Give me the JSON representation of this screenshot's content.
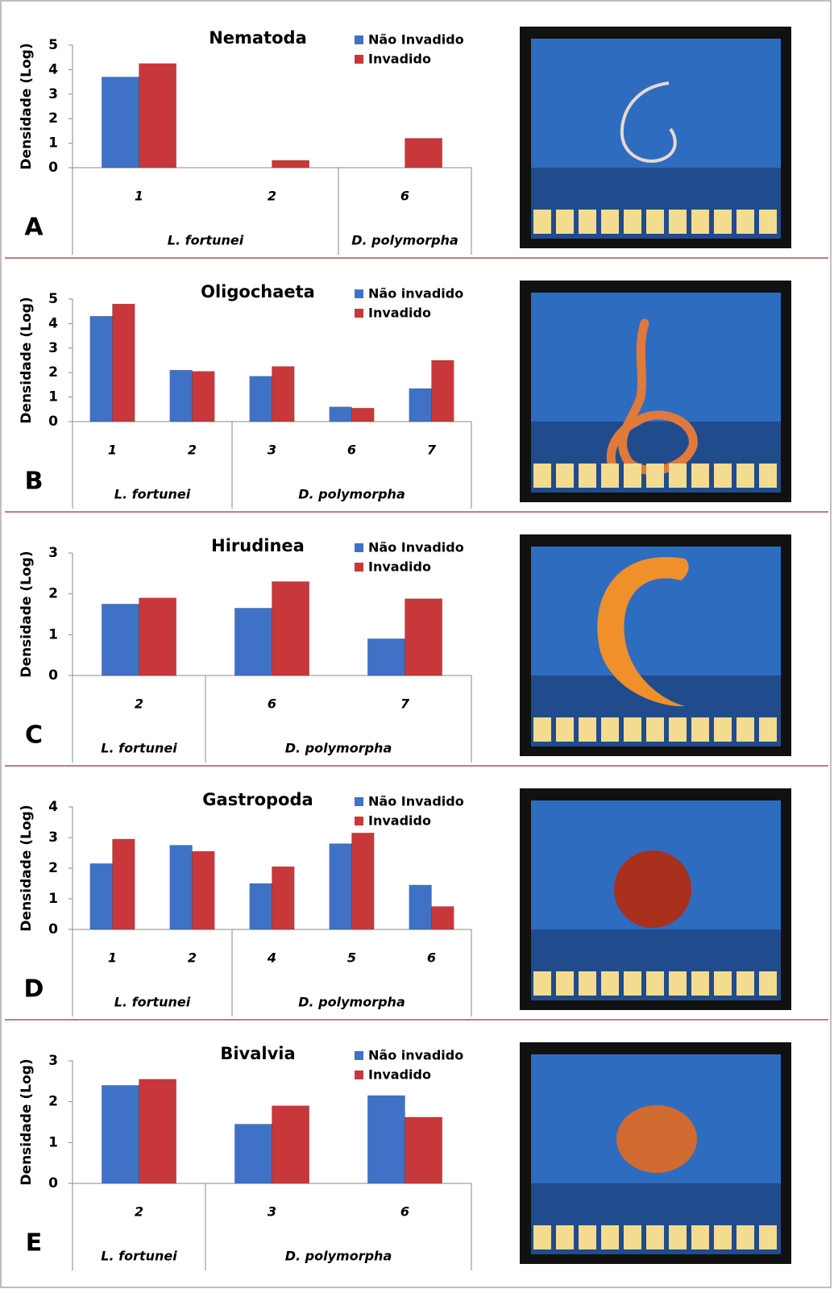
{
  "chart_data": [
    {
      "type": "bar",
      "panel": "A",
      "title": "Nematoda",
      "y_label": "Densidade (Log)",
      "categories": [
        "1",
        "2",
        "6"
      ],
      "category_groups": [
        "L. fortunei",
        "L. fortunei",
        "D. polymorpha"
      ],
      "series": [
        {
          "name": "Não Invadido",
          "color": "#3f72c6",
          "values": [
            3.7,
            0,
            0
          ]
        },
        {
          "name": "Invadido",
          "color": "#c8383a",
          "values": [
            4.25,
            0.3,
            1.2
          ]
        }
      ],
      "ylim": [
        0,
        5
      ],
      "yticks": [
        0,
        1,
        2,
        3,
        4,
        5
      ]
    },
    {
      "type": "bar",
      "panel": "B",
      "title": "Oligochaeta",
      "y_label": "Densidade (Log)",
      "categories": [
        "1",
        "2",
        "3",
        "6",
        "7"
      ],
      "category_groups": [
        "L. fortunei",
        "L. fortunei",
        "D. polymorpha",
        "D. polymorpha",
        "D. polymorpha"
      ],
      "series": [
        {
          "name": "Não invadido",
          "color": "#3f72c6",
          "values": [
            4.3,
            2.1,
            1.85,
            0.6,
            1.35
          ]
        },
        {
          "name": "Invadido",
          "color": "#c8383a",
          "values": [
            4.8,
            2.05,
            2.25,
            0.55,
            2.5
          ]
        }
      ],
      "ylim": [
        0,
        5
      ],
      "yticks": [
        0,
        1,
        2,
        3,
        4,
        5
      ]
    },
    {
      "type": "bar",
      "panel": "C",
      "title": "Hirudinea",
      "y_label": "Densidade (Log)",
      "categories": [
        "2",
        "6",
        "7"
      ],
      "category_groups": [
        "L. fortunei",
        "D. polymorpha",
        "D. polymorpha"
      ],
      "series": [
        {
          "name": "Não Invadido",
          "color": "#3f72c6",
          "values": [
            1.75,
            1.65,
            0.9
          ]
        },
        {
          "name": "Invadido",
          "color": "#c8383a",
          "values": [
            1.9,
            2.3,
            1.88
          ]
        }
      ],
      "ylim": [
        0,
        3
      ],
      "yticks": [
        0,
        1,
        2,
        3
      ]
    },
    {
      "type": "bar",
      "panel": "D",
      "title": "Gastropoda",
      "y_label": "Densidade (Log)",
      "categories": [
        "1",
        "2",
        "4",
        "5",
        "6"
      ],
      "category_groups": [
        "L. fortunei",
        "L. fortunei",
        "D. polymorpha",
        "D. polymorpha",
        "D. polymorpha"
      ],
      "series": [
        {
          "name": "Não Invadido",
          "color": "#3f72c6",
          "values": [
            2.15,
            2.75,
            1.5,
            2.8,
            1.45
          ]
        },
        {
          "name": "Invadido",
          "color": "#c8383a",
          "values": [
            2.95,
            2.55,
            2.05,
            3.15,
            0.75
          ]
        }
      ],
      "ylim": [
        0,
        4
      ],
      "yticks": [
        0,
        1,
        2,
        3,
        4
      ]
    },
    {
      "type": "bar",
      "panel": "E",
      "title": "Bivalvia",
      "y_label": "Densidade (Log)",
      "categories": [
        "2",
        "3",
        "6"
      ],
      "category_groups": [
        "L. fortunei",
        "D. polymorpha",
        "D. polymorpha"
      ],
      "series": [
        {
          "name": "Não invadido",
          "color": "#3f72c6",
          "values": [
            2.4,
            1.45,
            2.15
          ]
        },
        {
          "name": "Invadido",
          "color": "#c8383a",
          "values": [
            2.55,
            1.9,
            1.62
          ]
        }
      ],
      "ylim": [
        0,
        3
      ],
      "yticks": [
        0,
        1,
        2,
        3
      ]
    }
  ]
}
